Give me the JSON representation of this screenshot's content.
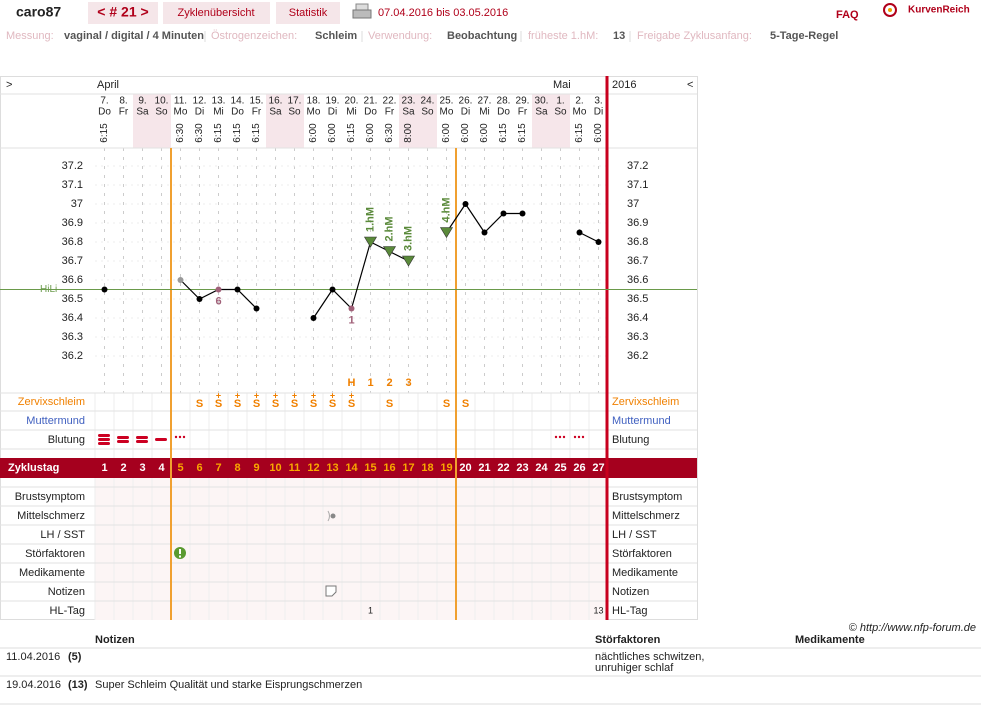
{
  "header": {
    "user": "caro87",
    "cycle_nav": "< # 21 >",
    "tabs": [
      "Zyklenübersicht",
      "Statistik"
    ],
    "date_range": "07.04.2016 bis 03.05.2016",
    "faq": "FAQ",
    "logo": "KurvenReich"
  },
  "settings": [
    {
      "label": "Messung:",
      "value": "vaginal / digital / 4 Minuten"
    },
    {
      "label": "Östrogenzeichen:",
      "value": "Schleim"
    },
    {
      "label": "Verwendung:",
      "value": "Beobachtung"
    },
    {
      "label": "früheste 1.hM:",
      "value": 13
    },
    {
      "label": "Freigabe Zyklusanfang:",
      "value": "5-Tage-Regel"
    }
  ],
  "chart_data": {
    "type": "line",
    "nav_prev": ">",
    "nav_next": "<",
    "year": "2016",
    "months": [
      "April",
      null,
      null,
      null,
      null,
      null,
      null,
      null,
      null,
      null,
      null,
      null,
      null,
      null,
      null,
      null,
      null,
      null,
      null,
      null,
      null,
      null,
      null,
      null,
      "Mai",
      null,
      null
    ],
    "day_numbers": [
      "7.",
      "8.",
      "9.",
      "10.",
      "11.",
      "12.",
      "13.",
      "14.",
      "15.",
      "16.",
      "17.",
      "18.",
      "19.",
      "20.",
      "21.",
      "22.",
      "23.",
      "24.",
      "25.",
      "26.",
      "27.",
      "28.",
      "29.",
      "30.",
      "1.",
      "2.",
      "3."
    ],
    "weekdays": [
      "Do",
      "Fr",
      "Sa",
      "So",
      "Mo",
      "Di",
      "Mi",
      "Do",
      "Fr",
      "Sa",
      "So",
      "Mo",
      "Di",
      "Mi",
      "Do",
      "Fr",
      "Sa",
      "So",
      "Mo",
      "Di",
      "Mi",
      "Do",
      "Fr",
      "Sa",
      "So",
      "Mo",
      "Di"
    ],
    "times": [
      "6:15",
      null,
      null,
      null,
      "6:30",
      "6:30",
      "6:15",
      "6:15",
      "6:15",
      null,
      null,
      "6:00",
      "6:00",
      "6:15",
      "6:00",
      "6:30",
      "8:00",
      null,
      "6:00",
      "6:00",
      "6:00",
      "6:15",
      "6:15",
      null,
      null,
      "6:15",
      "6:00"
    ],
    "ylim": [
      36.1,
      37.3
    ],
    "yticks": [
      36.2,
      36.3,
      36.4,
      36.5,
      36.6,
      36.7,
      36.8,
      36.9,
      37,
      37.1,
      37.2
    ],
    "values": [
      36.55,
      null,
      null,
      null,
      36.6,
      36.5,
      36.55,
      36.55,
      36.45,
      null,
      null,
      36.4,
      36.55,
      36.45,
      36.8,
      36.75,
      36.7,
      null,
      36.85,
      37.0,
      36.85,
      36.95,
      36.95,
      null,
      null,
      36.85,
      36.8
    ],
    "color": "#000000",
    "point_colors": [
      "#000000",
      null,
      null,
      null,
      "#999999",
      "#000000",
      "#a06078",
      "#000000",
      "#000000",
      null,
      null,
      "#000000",
      "#000000",
      "#a06078",
      "#5a8a3a",
      "#5a8a3a",
      "#5a8a3a",
      null,
      "#5a8a3a",
      "#000000",
      "#000000",
      "#000000",
      "#000000",
      null,
      null,
      "#000000",
      "#000000"
    ],
    "hm_labels": [
      null,
      null,
      null,
      null,
      null,
      null,
      null,
      null,
      null,
      null,
      null,
      null,
      null,
      null,
      "1.hM",
      "2.hM",
      "3.hM",
      null,
      "4.hM",
      null,
      null,
      null,
      null,
      null,
      null,
      null,
      null
    ],
    "low_labels": [
      null,
      null,
      null,
      null,
      null,
      null,
      6,
      null,
      null,
      null,
      null,
      null,
      null,
      1,
      null,
      null,
      null,
      null,
      null,
      null,
      null,
      null,
      null,
      null,
      null,
      null,
      null
    ],
    "hili": {
      "label": "HiLi",
      "value": 36.55,
      "color": "#6a9a4a"
    },
    "eval_marks": [
      null,
      null,
      null,
      null,
      null,
      null,
      null,
      null,
      null,
      null,
      null,
      null,
      null,
      "H",
      1,
      2,
      3,
      null,
      null,
      null,
      null,
      null,
      null,
      null,
      null,
      null,
      null
    ]
  },
  "rows": {
    "cervix": {
      "label": "Zervixschleim",
      "symbols": [
        null,
        null,
        null,
        null,
        null,
        "S",
        "S",
        "S",
        "S",
        "S",
        "S",
        "S",
        "S",
        "S",
        null,
        "S",
        null,
        null,
        "S",
        "S",
        null,
        null,
        null,
        null,
        null,
        null,
        null
      ],
      "plus": [
        null,
        null,
        null,
        null,
        null,
        null,
        "+",
        "+",
        "+",
        "+",
        "+",
        "+",
        "+",
        "+",
        null,
        null,
        null,
        null,
        null,
        null,
        null,
        null,
        null,
        null,
        null,
        null,
        null
      ]
    },
    "muttermund": "Muttermund",
    "blutung": "Blutung",
    "cycle_day": {
      "label": "Zyklustag",
      "days": [
        1,
        2,
        3,
        4,
        5,
        6,
        7,
        8,
        9,
        10,
        11,
        12,
        13,
        14,
        15,
        16,
        17,
        18,
        19,
        20,
        21,
        22,
        23,
        24,
        25,
        26,
        27
      ]
    },
    "lower": [
      "Brustsymptom",
      "Mittelschmerz",
      "LH / SST",
      "Störfaktoren",
      "Medikamente",
      "Notizen",
      "HL-Tag"
    ],
    "hl_tag": [
      null,
      null,
      null,
      null,
      null,
      null,
      null,
      null,
      null,
      null,
      null,
      null,
      null,
      null,
      1,
      null,
      null,
      null,
      null,
      null,
      null,
      null,
      null,
      null,
      null,
      null,
      13
    ]
  },
  "copyright": "© http://www.nfp-forum.de",
  "notes_table": {
    "headers": [
      "Notizen",
      "Störfaktoren",
      "Medikamente"
    ],
    "rows": [
      {
        "date": "11.04.2016",
        "day": "(5)",
        "disturbance": [
          "nächtliches schwitzen,",
          "unruhiger schlaf"
        ]
      },
      {
        "date": "19.04.2016",
        "day": "(13)",
        "note": "Super Schleim Qualität und starke Eisprungschmerzen"
      }
    ]
  }
}
